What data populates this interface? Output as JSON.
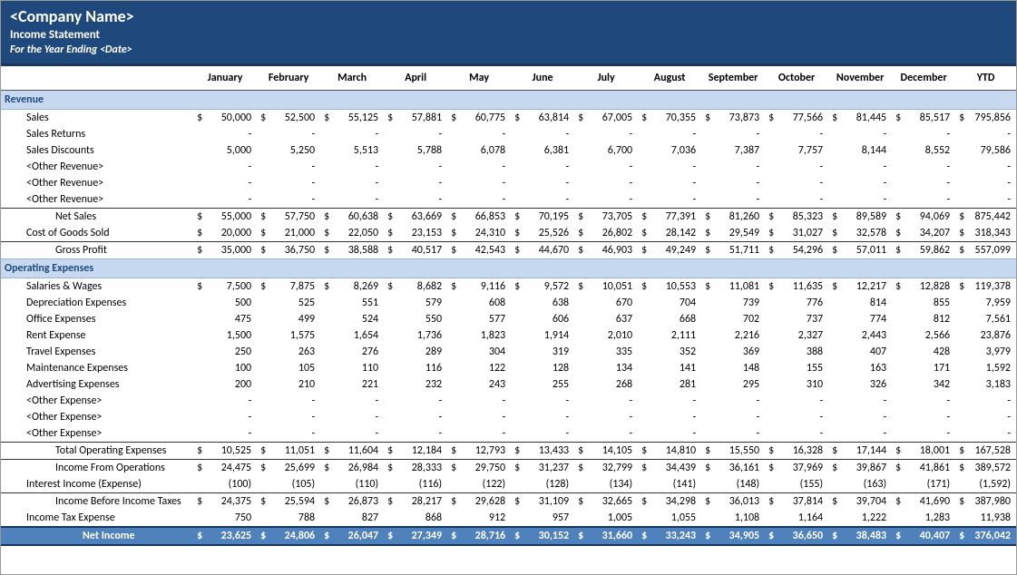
{
  "header": {
    "company": "<Company Name>",
    "title": "Income Statement",
    "period": "For the Year Ending <Date>"
  },
  "columns": [
    "January",
    "February",
    "March",
    "April",
    "May",
    "June",
    "July",
    "August",
    "September",
    "October",
    "November",
    "December",
    "YTD"
  ],
  "colors": {
    "header_bg": "#1f497d",
    "section_bg": "#c6d9f0",
    "section_fg": "#1f497d",
    "netincome_bg": "#4f81bd",
    "netincome_fg": "#ffffff",
    "border_dark": "#17375e"
  },
  "typography": {
    "font_family": "Calibri",
    "body_fontsize": 12,
    "header_title_fontsize": 18
  },
  "sections": [
    {
      "title": "Revenue",
      "rows": [
        {
          "label": "Sales",
          "indent": 1,
          "dollar": true,
          "values": [
            "50,000",
            "52,500",
            "55,125",
            "57,881",
            "60,775",
            "63,814",
            "67,005",
            "70,355",
            "73,873",
            "77,566",
            "81,445",
            "85,517",
            "795,856"
          ]
        },
        {
          "label": "Sales Returns",
          "indent": 1,
          "dollar": false,
          "values": [
            "-",
            "-",
            "-",
            "-",
            "-",
            "-",
            "-",
            "-",
            "-",
            "-",
            "-",
            "-",
            "-"
          ]
        },
        {
          "label": "Sales Discounts",
          "indent": 1,
          "dollar": false,
          "values": [
            "5,000",
            "5,250",
            "5,513",
            "5,788",
            "6,078",
            "6,381",
            "6,700",
            "7,036",
            "7,387",
            "7,757",
            "8,144",
            "8,552",
            "79,586"
          ]
        },
        {
          "label": "<Other Revenue>",
          "indent": 1,
          "dollar": false,
          "values": [
            "-",
            "-",
            "-",
            "-",
            "-",
            "-",
            "-",
            "-",
            "-",
            "-",
            "-",
            "-",
            "-"
          ]
        },
        {
          "label": "<Other Revenue>",
          "indent": 1,
          "dollar": false,
          "values": [
            "-",
            "-",
            "-",
            "-",
            "-",
            "-",
            "-",
            "-",
            "-",
            "-",
            "-",
            "-",
            "-"
          ]
        },
        {
          "label": "<Other Revenue>",
          "indent": 1,
          "dollar": false,
          "values": [
            "-",
            "-",
            "-",
            "-",
            "-",
            "-",
            "-",
            "-",
            "-",
            "-",
            "-",
            "-",
            "-"
          ]
        },
        {
          "label": "Net Sales",
          "indent": 2,
          "dollar": true,
          "sum": true,
          "values": [
            "55,000",
            "57,750",
            "60,638",
            "63,669",
            "66,853",
            "70,195",
            "73,705",
            "77,391",
            "81,260",
            "85,323",
            "89,589",
            "94,069",
            "875,442"
          ]
        },
        {
          "label": "Cost of Goods Sold",
          "indent": 1,
          "dollar": true,
          "values": [
            "20,000",
            "21,000",
            "22,050",
            "23,153",
            "24,310",
            "25,526",
            "26,802",
            "28,142",
            "29,549",
            "31,027",
            "32,578",
            "34,207",
            "318,343"
          ]
        },
        {
          "label": "Gross Profit",
          "indent": 2,
          "dollar": true,
          "sum": true,
          "values": [
            "35,000",
            "36,750",
            "38,588",
            "40,517",
            "42,543",
            "44,670",
            "46,903",
            "49,249",
            "51,711",
            "54,296",
            "57,011",
            "59,862",
            "557,099"
          ]
        }
      ]
    },
    {
      "title": "Operating Expenses",
      "rows": [
        {
          "label": "Salaries & Wages",
          "indent": 1,
          "dollar": true,
          "values": [
            "7,500",
            "7,875",
            "8,269",
            "8,682",
            "9,116",
            "9,572",
            "10,051",
            "10,553",
            "11,081",
            "11,635",
            "12,217",
            "12,828",
            "119,378"
          ]
        },
        {
          "label": "Depreciation Expenses",
          "indent": 1,
          "dollar": false,
          "values": [
            "500",
            "525",
            "551",
            "579",
            "608",
            "638",
            "670",
            "704",
            "739",
            "776",
            "814",
            "855",
            "7,959"
          ]
        },
        {
          "label": "Office Expenses",
          "indent": 1,
          "dollar": false,
          "values": [
            "475",
            "499",
            "524",
            "550",
            "577",
            "606",
            "637",
            "668",
            "702",
            "737",
            "774",
            "812",
            "7,561"
          ]
        },
        {
          "label": "Rent Expense",
          "indent": 1,
          "dollar": false,
          "values": [
            "1,500",
            "1,575",
            "1,654",
            "1,736",
            "1,823",
            "1,914",
            "2,010",
            "2,111",
            "2,216",
            "2,327",
            "2,443",
            "2,566",
            "23,876"
          ]
        },
        {
          "label": "Travel Expenses",
          "indent": 1,
          "dollar": false,
          "values": [
            "250",
            "263",
            "276",
            "289",
            "304",
            "319",
            "335",
            "352",
            "369",
            "388",
            "407",
            "428",
            "3,979"
          ]
        },
        {
          "label": "Maintenance Expenses",
          "indent": 1,
          "dollar": false,
          "values": [
            "100",
            "105",
            "110",
            "116",
            "122",
            "128",
            "134",
            "141",
            "148",
            "155",
            "163",
            "171",
            "1,592"
          ]
        },
        {
          "label": "Advertising Expenses",
          "indent": 1,
          "dollar": false,
          "values": [
            "200",
            "210",
            "221",
            "232",
            "243",
            "255",
            "268",
            "281",
            "295",
            "310",
            "326",
            "342",
            "3,183"
          ]
        },
        {
          "label": "<Other Expense>",
          "indent": 1,
          "dollar": false,
          "values": [
            "-",
            "-",
            "-",
            "-",
            "-",
            "-",
            "-",
            "-",
            "-",
            "-",
            "-",
            "-",
            "-"
          ]
        },
        {
          "label": "<Other Expense>",
          "indent": 1,
          "dollar": false,
          "values": [
            "-",
            "-",
            "-",
            "-",
            "-",
            "-",
            "-",
            "-",
            "-",
            "-",
            "-",
            "-",
            "-"
          ]
        },
        {
          "label": "<Other Expense>",
          "indent": 1,
          "dollar": false,
          "values": [
            "-",
            "-",
            "-",
            "-",
            "-",
            "-",
            "-",
            "-",
            "-",
            "-",
            "-",
            "-",
            "-"
          ]
        },
        {
          "label": "Total Operating Expenses",
          "indent": 2,
          "dollar": true,
          "sum": true,
          "values": [
            "10,525",
            "11,051",
            "11,604",
            "12,184",
            "12,793",
            "13,433",
            "14,105",
            "14,810",
            "15,550",
            "16,328",
            "17,144",
            "18,001",
            "167,528"
          ]
        },
        {
          "label": "Income From Operations",
          "indent": 2,
          "dollar": true,
          "sum": true,
          "values": [
            "24,475",
            "25,699",
            "26,984",
            "28,333",
            "29,750",
            "31,237",
            "32,799",
            "34,439",
            "36,161",
            "37,969",
            "39,867",
            "41,861",
            "389,572"
          ]
        },
        {
          "label": "Interest Income (Expense)",
          "indent": 1,
          "dollar": false,
          "values": [
            "(100)",
            "(105)",
            "(110)",
            "(116)",
            "(122)",
            "(128)",
            "(134)",
            "(141)",
            "(148)",
            "(155)",
            "(163)",
            "(171)",
            "(1,592)"
          ]
        },
        {
          "label": "Income Before Income Taxes",
          "indent": 2,
          "dollar": true,
          "sum": true,
          "values": [
            "24,375",
            "25,594",
            "26,873",
            "28,217",
            "29,628",
            "31,109",
            "32,665",
            "34,298",
            "36,013",
            "37,814",
            "39,704",
            "41,690",
            "387,980"
          ]
        },
        {
          "label": "Income Tax Expense",
          "indent": 1,
          "dollar": false,
          "values": [
            "750",
            "788",
            "827",
            "868",
            "912",
            "957",
            "1,005",
            "1,055",
            "1,108",
            "1,164",
            "1,222",
            "1,283",
            "11,938"
          ]
        }
      ]
    }
  ],
  "netincome": {
    "label": "Net Income",
    "dollar": true,
    "values": [
      "23,625",
      "24,806",
      "26,047",
      "27,349",
      "28,716",
      "30,152",
      "31,660",
      "33,243",
      "34,905",
      "36,650",
      "38,483",
      "40,407",
      "376,042"
    ]
  },
  "ytd_label": "YTD",
  "ytd_dollar_prefix": "$"
}
